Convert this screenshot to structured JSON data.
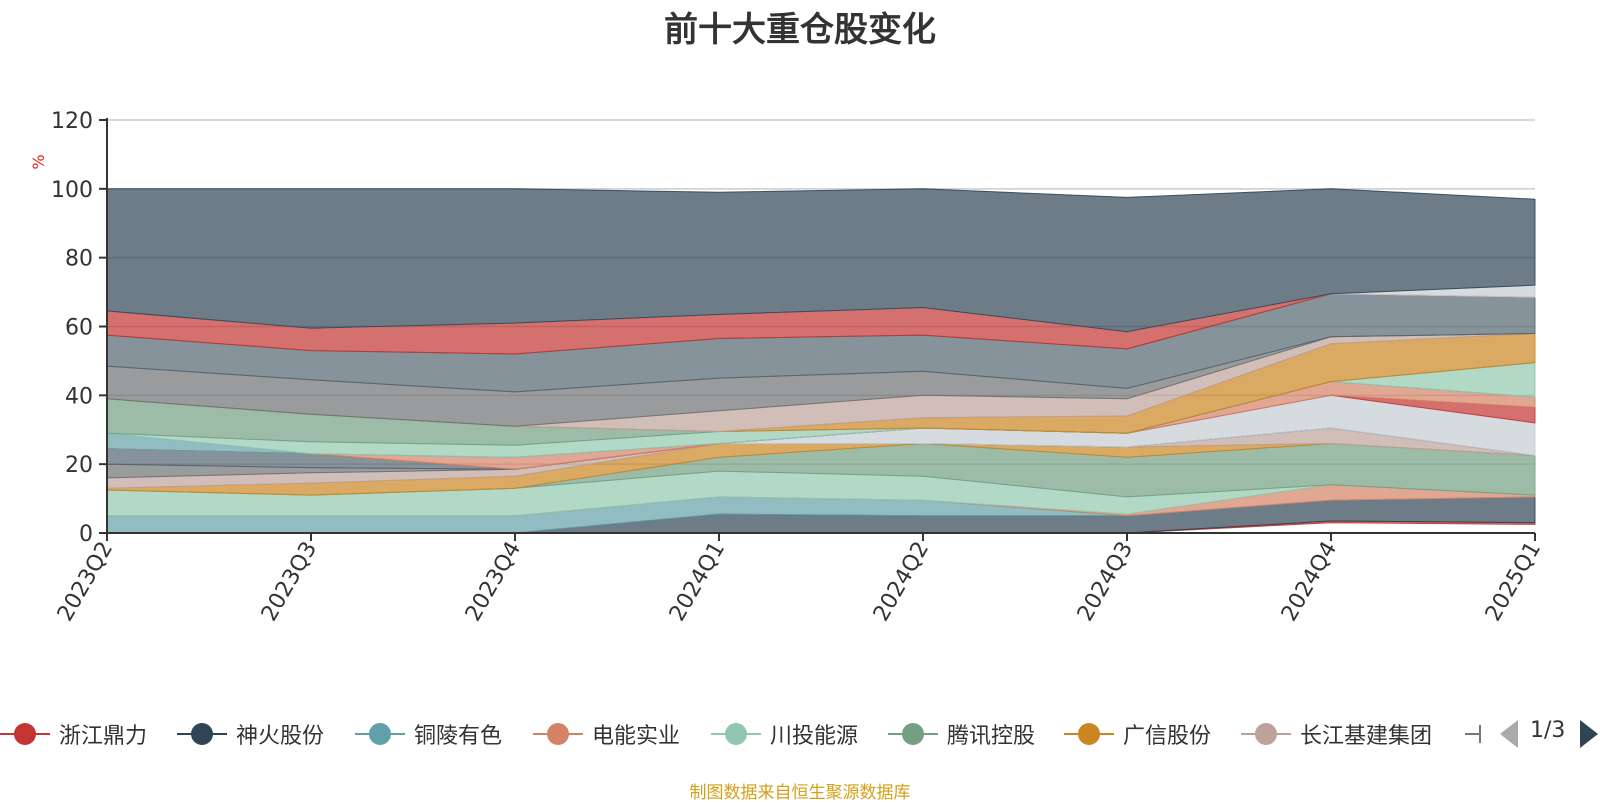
{
  "chart_data": {
    "type": "area",
    "title": "前十大重仓股变化",
    "ylabel": "%",
    "xlabel": "",
    "ylim": [
      0,
      120
    ],
    "yticks": [
      0,
      20,
      40,
      60,
      80,
      100,
      120
    ],
    "categories": [
      "2023Q2",
      "2023Q3",
      "2023Q4",
      "2024Q1",
      "2024Q2",
      "2024Q3",
      "2024Q4",
      "2025Q1"
    ],
    "stacked": true,
    "grid": true,
    "legend_position": "bottom",
    "bands": [
      {
        "color": "#c23531",
        "lower": [
          0,
          0,
          0,
          0,
          0,
          0,
          3,
          2.5
        ],
        "upper": [
          0,
          0,
          0,
          0,
          0,
          0,
          3.5,
          3
        ]
      },
      {
        "color": "#2f4554",
        "lower": [
          0,
          0,
          0,
          0,
          0,
          0,
          3.5,
          3
        ],
        "upper": [
          0,
          0,
          0,
          5.5,
          5,
          5,
          9.5,
          10.5
        ]
      },
      {
        "color": "#61a0a8",
        "lower": [
          0,
          0,
          0,
          5.5,
          5,
          5,
          9.5,
          10.5
        ],
        "upper": [
          5,
          5,
          5,
          10.5,
          9.5,
          5,
          9.5,
          10.5
        ]
      },
      {
        "color": "#d48265",
        "lower": [
          5,
          5,
          5,
          10.5,
          9.5,
          5,
          9.5,
          10.5
        ],
        "upper": [
          5,
          5,
          5,
          10.5,
          9.5,
          5.5,
          14,
          11
        ]
      },
      {
        "color": "#91c7ae",
        "lower": [
          5,
          5,
          5,
          10.5,
          9.5,
          5.5,
          14,
          11
        ],
        "upper": [
          12.5,
          11,
          13,
          18,
          16.5,
          10.5,
          14,
          11
        ]
      },
      {
        "color": "#749f83",
        "lower": [
          12.5,
          11,
          13,
          18,
          16.5,
          10.5,
          14,
          11
        ],
        "upper": [
          12.5,
          11,
          13,
          22,
          26,
          22,
          26,
          22.5
        ]
      },
      {
        "color": "#ca8622",
        "lower": [
          12.5,
          11,
          13,
          22,
          26,
          22,
          26,
          22.5
        ],
        "upper": [
          13,
          14.5,
          16.5,
          26,
          26,
          25,
          26,
          22.5
        ]
      },
      {
        "color": "#bda29a",
        "lower": [
          13,
          14.5,
          16.5,
          26,
          26,
          25,
          26,
          22.5
        ],
        "upper": [
          16,
          17.5,
          18.5,
          26,
          26,
          25,
          30.5,
          22.5
        ]
      },
      {
        "color": "#6e7074",
        "lower": [
          16,
          17.5,
          18.5,
          26,
          26,
          25,
          30.5,
          22.5
        ],
        "upper": [
          20,
          19,
          18.5,
          26,
          26,
          25,
          30.5,
          22.5
        ]
      },
      {
        "color": "#546570",
        "lower": [
          20,
          19,
          18.5,
          26,
          26,
          25,
          30.5,
          22.5
        ],
        "upper": [
          24.5,
          23,
          18.5,
          26,
          26,
          25,
          30.5,
          22.5
        ]
      },
      {
        "color": "#c4ccd3",
        "lower": [
          24.5,
          23,
          18.5,
          26,
          26,
          25,
          30.5,
          22.5
        ],
        "upper": [
          24.5,
          23,
          18.5,
          26,
          30.5,
          29,
          40,
          32
        ]
      },
      {
        "color": "#c23531",
        "lower": [
          24.5,
          23,
          18.5,
          26,
          30.5,
          29,
          40,
          32
        ],
        "upper": [
          24.5,
          23,
          18.5,
          26,
          30.5,
          29,
          40,
          36.5
        ]
      },
      {
        "color": "#d48265",
        "lower": [
          24.5,
          23,
          18.5,
          26,
          30.5,
          29,
          40,
          36.5
        ],
        "upper": [
          24.5,
          23,
          22,
          26,
          30.5,
          29,
          44,
          39.5
        ]
      },
      {
        "color": "#61a0a8",
        "lower": [
          24.5,
          23,
          22,
          26,
          30.5,
          29,
          44,
          39.5
        ],
        "upper": [
          29,
          23,
          22,
          26,
          30.5,
          29,
          44,
          39.5
        ]
      },
      {
        "color": "#91c7ae",
        "lower": [
          29,
          23,
          22,
          26,
          30.5,
          29,
          44,
          39.5
        ],
        "upper": [
          29,
          26.5,
          25.5,
          29.5,
          30.5,
          29,
          44,
          49.5
        ]
      },
      {
        "color": "#749f83",
        "lower": [
          29,
          26.5,
          25.5,
          29.5,
          30.5,
          29,
          44,
          49.5
        ],
        "upper": [
          39,
          34.5,
          31,
          29.5,
          30.5,
          29,
          44,
          49.5
        ]
      },
      {
        "color": "#ca8622",
        "lower": [
          39,
          34.5,
          31,
          29.5,
          30.5,
          29,
          44,
          49.5
        ],
        "upper": [
          39,
          34.5,
          31,
          29.5,
          33.5,
          34,
          55,
          58
        ]
      },
      {
        "color": "#bda29a",
        "lower": [
          39,
          34.5,
          31,
          29.5,
          33.5,
          34,
          55,
          58
        ],
        "upper": [
          39,
          34.5,
          31,
          35.5,
          40,
          39,
          57,
          58
        ]
      },
      {
        "color": "#6e7074",
        "lower": [
          39,
          34.5,
          31,
          35.5,
          40,
          39,
          57,
          58
        ],
        "upper": [
          48.5,
          44.5,
          41,
          45,
          47,
          42,
          57,
          58
        ]
      },
      {
        "color": "#546570",
        "lower": [
          48.5,
          44.5,
          41,
          45,
          47,
          42,
          57,
          58
        ],
        "upper": [
          57.5,
          53,
          52,
          56.5,
          57.5,
          53.5,
          69.5,
          68.5
        ]
      },
      {
        "color": "#c23531",
        "lower": [
          57.5,
          53,
          52,
          56.5,
          57.5,
          53.5,
          69.5,
          68.5
        ],
        "upper": [
          64.5,
          59.5,
          61,
          63.5,
          65.5,
          58.5,
          69.5,
          68.5
        ]
      },
      {
        "color": "#c4ccd3",
        "lower": [
          64.5,
          59.5,
          61,
          63.5,
          65.5,
          58.5,
          69.5,
          68.5
        ],
        "upper": [
          64.5,
          59.5,
          61,
          63.5,
          65.5,
          58.5,
          69.5,
          72
        ]
      },
      {
        "color": "#2f4554",
        "lower": [
          64.5,
          59.5,
          61,
          63.5,
          65.5,
          58.5,
          69.5,
          72
        ],
        "upper": [
          100,
          100,
          100,
          99,
          100,
          97.5,
          100,
          97
        ]
      }
    ],
    "legend": [
      {
        "name": "浙江鼎力",
        "color": "#c23531"
      },
      {
        "name": "神火股份",
        "color": "#2f4554"
      },
      {
        "name": "铜陵有色",
        "color": "#61a0a8"
      },
      {
        "name": "电能实业",
        "color": "#d48265"
      },
      {
        "name": "川投能源",
        "color": "#91c7ae"
      },
      {
        "name": "腾讯控股",
        "color": "#749f83"
      },
      {
        "name": "广信股份",
        "color": "#ca8622"
      },
      {
        "name": "长江基建集团",
        "color": "#bda29a"
      }
    ],
    "legend_page": "1/3",
    "source": "制图数据来自恒生聚源数据库"
  }
}
